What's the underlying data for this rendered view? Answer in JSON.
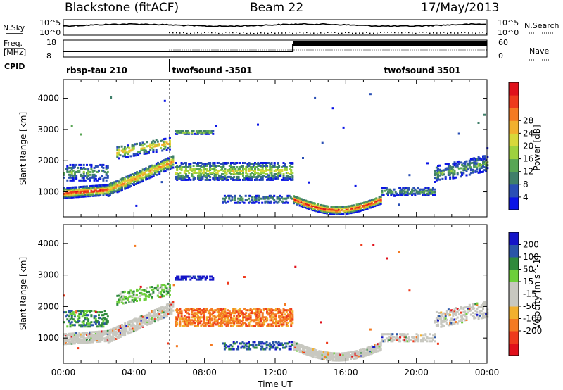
{
  "header": {
    "station": "Blackstone (fitACF)",
    "beam": "Beam 22",
    "date": "17/May/2013"
  },
  "top_panels": {
    "nsky_label": "N.Sky",
    "nsearch_label": "N.Search",
    "freq_label_1": "Freq.",
    "freq_label_2": "[MHz]",
    "nave_label": "Nave",
    "cpid_label": "CPID",
    "noise_ticks": [
      "10^5",
      "10^0"
    ],
    "freq_ticks": [
      "18",
      "8"
    ],
    "nave_ticks": [
      "60",
      "0"
    ],
    "cpid_segments": [
      {
        "label": "rbsp-tau 210",
        "start_hour": 0
      },
      {
        "label": "twofsound -3501",
        "start_hour": 6
      },
      {
        "label": "twofsound 3501",
        "start_hour": 18
      }
    ]
  },
  "chart_data": [
    {
      "type": "heatmap",
      "name": "power",
      "ylabel": "Slant Range [km]",
      "xlabel": "Time UT",
      "x_range_hours": [
        0,
        24
      ],
      "ylim": [
        200,
        4600
      ],
      "y_ticks": [
        1000,
        2000,
        3000,
        4000
      ],
      "x_tick_labels": [
        "00:00",
        "04:00",
        "08:00",
        "12:00",
        "16:00",
        "20:00",
        "00:00"
      ],
      "colorbar": {
        "label": "Power [dB]",
        "ticks": [
          "4",
          "8",
          "12",
          "16",
          "20",
          "24",
          "28"
        ],
        "colors": [
          "#0a14e6",
          "#2a4fb5",
          "#3f7f6a",
          "#58a654",
          "#9ed23e",
          "#d8d83a",
          "#f2b02e",
          "#f47a22",
          "#ee3a1c",
          "#e0101a"
        ]
      }
    },
    {
      "type": "heatmap",
      "name": "velocity",
      "ylabel": "Slant Range [km]",
      "xlabel": "Time UT",
      "x_range_hours": [
        0,
        24
      ],
      "ylim": [
        200,
        4600
      ],
      "y_ticks": [
        1000,
        2000,
        3000,
        4000
      ],
      "x_tick_labels": [
        "00:00",
        "04:00",
        "08:00",
        "12:00",
        "16:00",
        "20:00",
        "00:00"
      ],
      "colorbar": {
        "label": "Velocity [m s^-1]",
        "ticks": [
          "200",
          "100",
          "50",
          "15",
          "-15",
          "-50",
          "-100",
          "-200"
        ],
        "colors": [
          "#1414c8",
          "#2a55a8",
          "#2f8a3c",
          "#6ccf3a",
          "#c8c8c0",
          "#c8c8c0",
          "#f2b02e",
          "#f47a22",
          "#ee3a1c",
          "#e0101a"
        ]
      }
    }
  ],
  "colors": {
    "ground_scatter": "#c8c8c0"
  }
}
